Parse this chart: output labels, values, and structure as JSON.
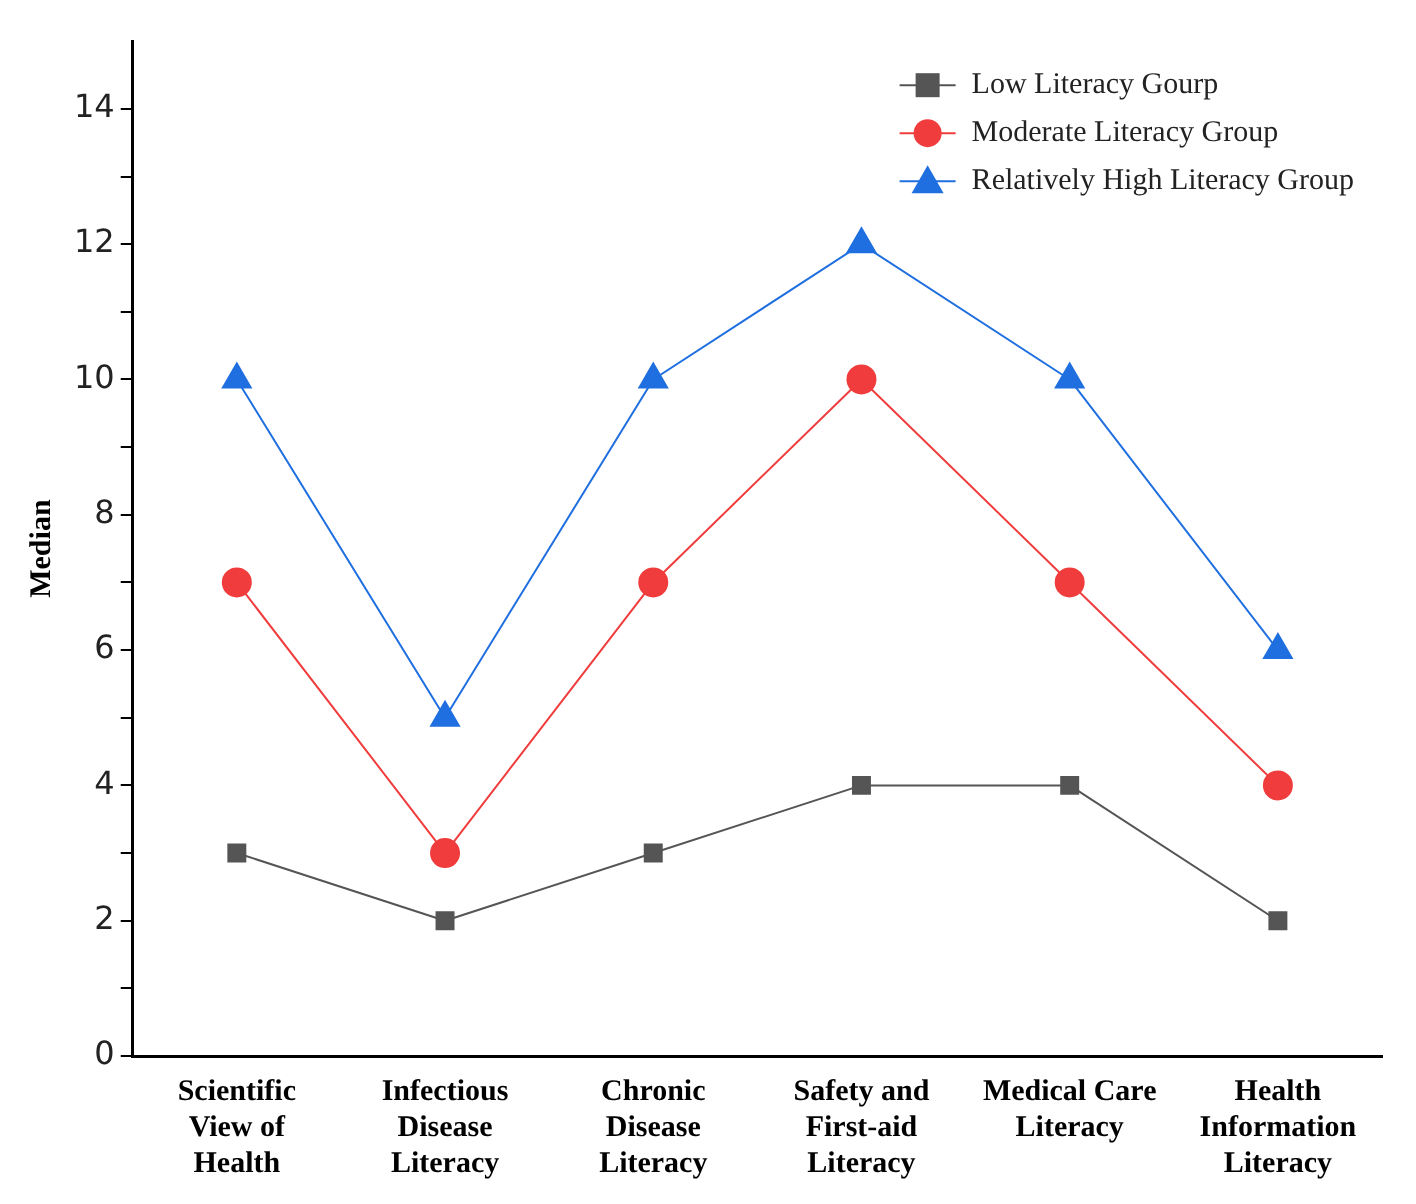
{
  "chart_data": {
    "type": "line",
    "ylabel": "Median",
    "categories": [
      "Scientific View of Health",
      "Infectious Disease Literacy",
      "Chronic Disease Literacy",
      "Safety and First-aid Literacy",
      "Medical Care Literacy",
      "Health Information Literacy"
    ],
    "series": [
      {
        "name": "Low Literacy Gourp",
        "color": "#555555",
        "marker": "square",
        "values": [
          3,
          2,
          3,
          4,
          4,
          2
        ]
      },
      {
        "name": "Moderate Literacy Group",
        "color": "#f03c3c",
        "marker": "circle",
        "values": [
          7,
          3,
          7,
          10,
          7,
          4
        ]
      },
      {
        "name": "Relatively High Literacy Group",
        "color": "#1f6fe0",
        "marker": "triangle",
        "values": [
          10,
          5,
          10,
          12,
          10,
          6
        ]
      }
    ],
    "ylim": [
      0,
      15
    ],
    "yticks": [
      0,
      {
        "value": 1,
        "label": null
      },
      2,
      {
        "value": 3,
        "label": null
      },
      4,
      {
        "value": 5,
        "label": null
      },
      6,
      {
        "value": 7,
        "label": null
      },
      8,
      {
        "value": 9,
        "label": null
      },
      10,
      {
        "value": 11,
        "label": null
      },
      12,
      {
        "value": 13,
        "label": null
      },
      14
    ],
    "grid": false,
    "legend": "top right",
    "line_style": "solid"
  }
}
